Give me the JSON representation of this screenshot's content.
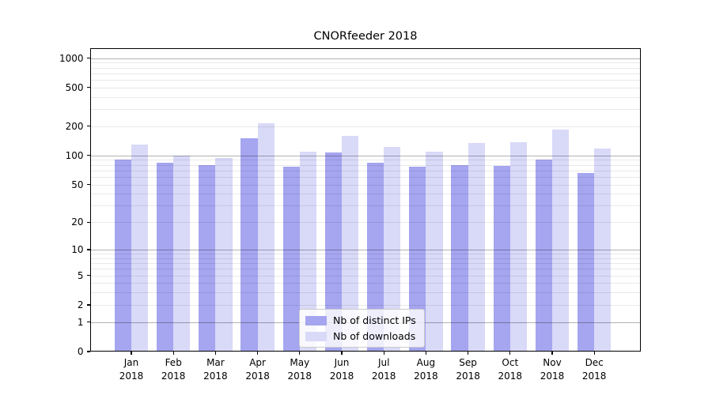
{
  "title": "CNORfeeder 2018",
  "chart_data": {
    "type": "bar",
    "title": "CNORfeeder 2018",
    "scale": "log1p (y position proportional to log10(1+value); ticks 0,1,2,5,10,20,50,100,200,500,1000)",
    "grid": "horizontal major gridlines at 1,10,100,1000 (darker) and minor gridlines at 2-9 per decade (light), drawn over the bars",
    "legend_position": "lower center",
    "categories": [
      "Jan",
      "Feb",
      "Mar",
      "Apr",
      "May",
      "Jun",
      "Jul",
      "Aug",
      "Sep",
      "Oct",
      "Nov",
      "Dec"
    ],
    "year": "2018",
    "yticks": [
      0,
      1,
      2,
      5,
      10,
      20,
      50,
      100,
      200,
      500,
      1000
    ],
    "ylim": [
      0,
      1260
    ],
    "series": [
      {
        "name": "Nb of distinct IPs",
        "color": "#a5a5f0",
        "values": [
          90,
          85,
          79,
          150,
          76,
          108,
          85,
          77,
          80,
          78,
          91,
          66
        ]
      },
      {
        "name": "Nb of downloads",
        "color": "#d9d9f8",
        "values": [
          130,
          100,
          95,
          215,
          109,
          160,
          122,
          110,
          134,
          136,
          184,
          119
        ]
      }
    ]
  },
  "colors": {
    "background": "#ffffff",
    "spine": "#000000",
    "grid_major": "#b3b3b3",
    "grid_minor": "#ebebeb",
    "bar_distinct_ips": "#a5a5f0",
    "bar_downloads": "#d9d9f8",
    "text": "#000000"
  }
}
